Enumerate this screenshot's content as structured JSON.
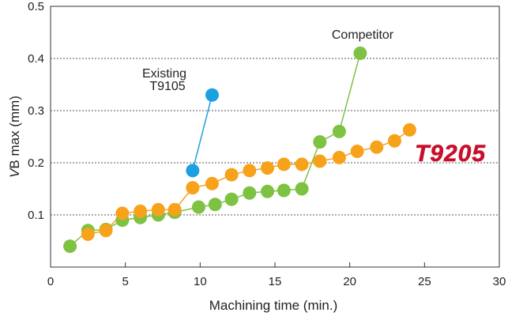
{
  "chart_data": {
    "type": "line",
    "title": "",
    "xlabel": "Machining time (min.)",
    "ylabel_italic": "V",
    "ylabel": "B max (mm)",
    "xlim": [
      0,
      30
    ],
    "ylim": [
      0,
      0.5
    ],
    "xticks": [
      0,
      5,
      10,
      15,
      20,
      25,
      30
    ],
    "yticks": [
      0.1,
      0.2,
      0.3,
      0.4,
      0.5
    ],
    "ytick_labels": [
      "0.1",
      "0.2",
      "0.3",
      "0.4",
      "0.5"
    ],
    "grid": "horizontal dotted",
    "series": [
      {
        "name": "Existing T9105",
        "label_lines": [
          "Existing",
          "T9105"
        ],
        "color": "#1ba1e2",
        "x": [
          9.5,
          10.8
        ],
        "y": [
          0.185,
          0.33
        ]
      },
      {
        "name": "Competitor",
        "label_lines": [
          "Competitor"
        ],
        "color": "#7dc242",
        "x": [
          1.3,
          2.5,
          3.7,
          4.8,
          6.0,
          7.2,
          8.3,
          9.9,
          11.0,
          12.1,
          13.3,
          14.5,
          15.6,
          16.8,
          18.0,
          19.3,
          20.7
        ],
        "y": [
          0.04,
          0.07,
          0.072,
          0.09,
          0.095,
          0.1,
          0.105,
          0.115,
          0.12,
          0.13,
          0.142,
          0.145,
          0.147,
          0.15,
          0.24,
          0.26,
          0.41
        ]
      },
      {
        "name": "T9205",
        "label_lines": [
          "T9205"
        ],
        "color": "#f7a21b",
        "x": [
          2.5,
          3.7,
          4.8,
          6.0,
          7.2,
          8.3,
          9.5,
          10.8,
          12.1,
          13.3,
          14.5,
          15.6,
          16.8,
          18.0,
          19.3,
          20.5,
          21.8,
          23.0,
          24.0
        ],
        "y": [
          0.063,
          0.07,
          0.103,
          0.107,
          0.11,
          0.11,
          0.152,
          0.16,
          0.177,
          0.185,
          0.19,
          0.197,
          0.197,
          0.203,
          0.21,
          0.222,
          0.23,
          0.242,
          0.263
        ]
      }
    ],
    "annotations": {
      "existing_lines": [
        "Existing",
        "T9105"
      ],
      "competitor": "Competitor",
      "brand": "T9205",
      "brand_color": "#c8102e"
    }
  }
}
